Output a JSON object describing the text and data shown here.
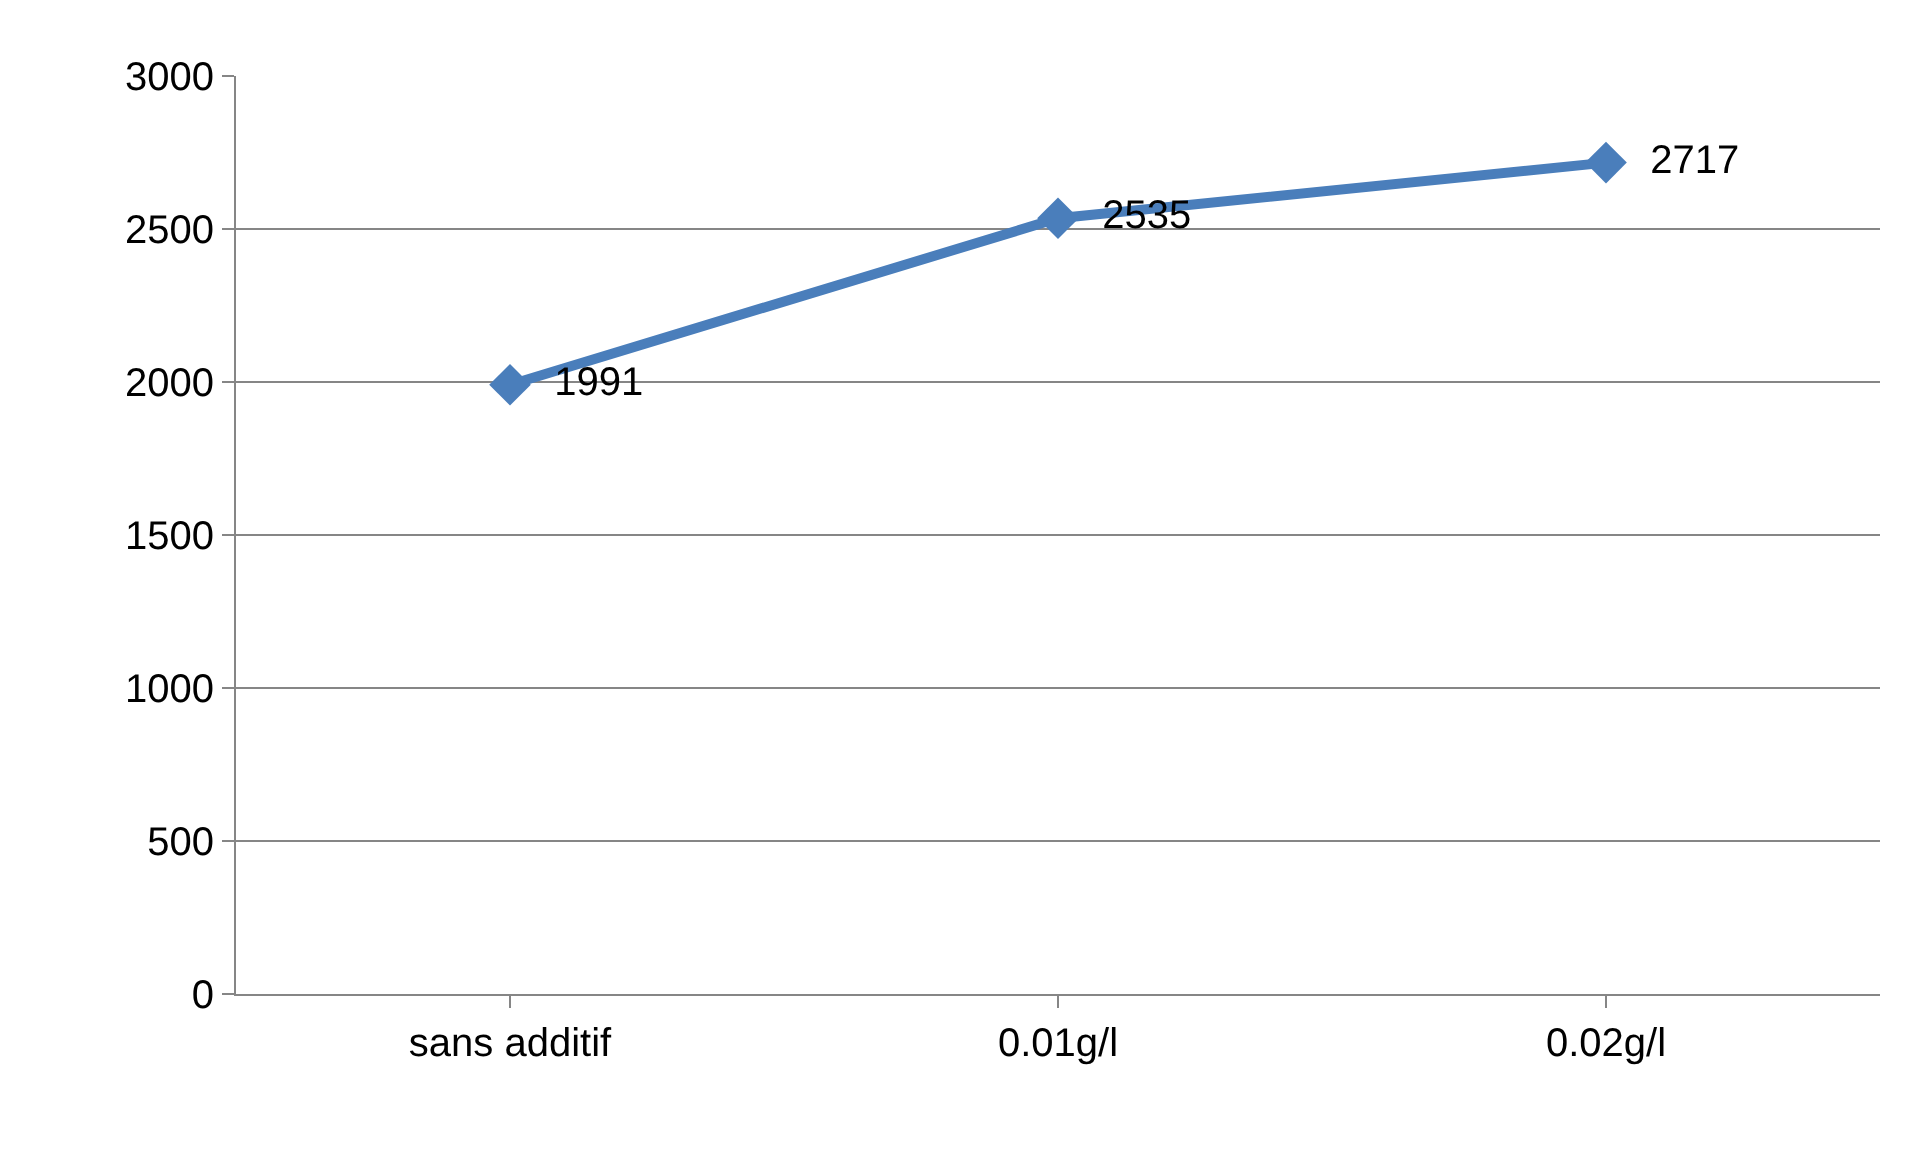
{
  "chart_data": {
    "type": "line",
    "categories": [
      "sans additif",
      "0.01g/l",
      "0.02g/l"
    ],
    "series": [
      {
        "color": "#4a7ebb",
        "values": [
          1991,
          2535,
          2717
        ]
      }
    ],
    "ylim": [
      0,
      3000
    ],
    "yticks": [
      0,
      500,
      1000,
      1500,
      2000,
      2500,
      3000
    ],
    "grid": "y",
    "marker": "diamond",
    "line_style": "solid",
    "data_labels": true
  }
}
